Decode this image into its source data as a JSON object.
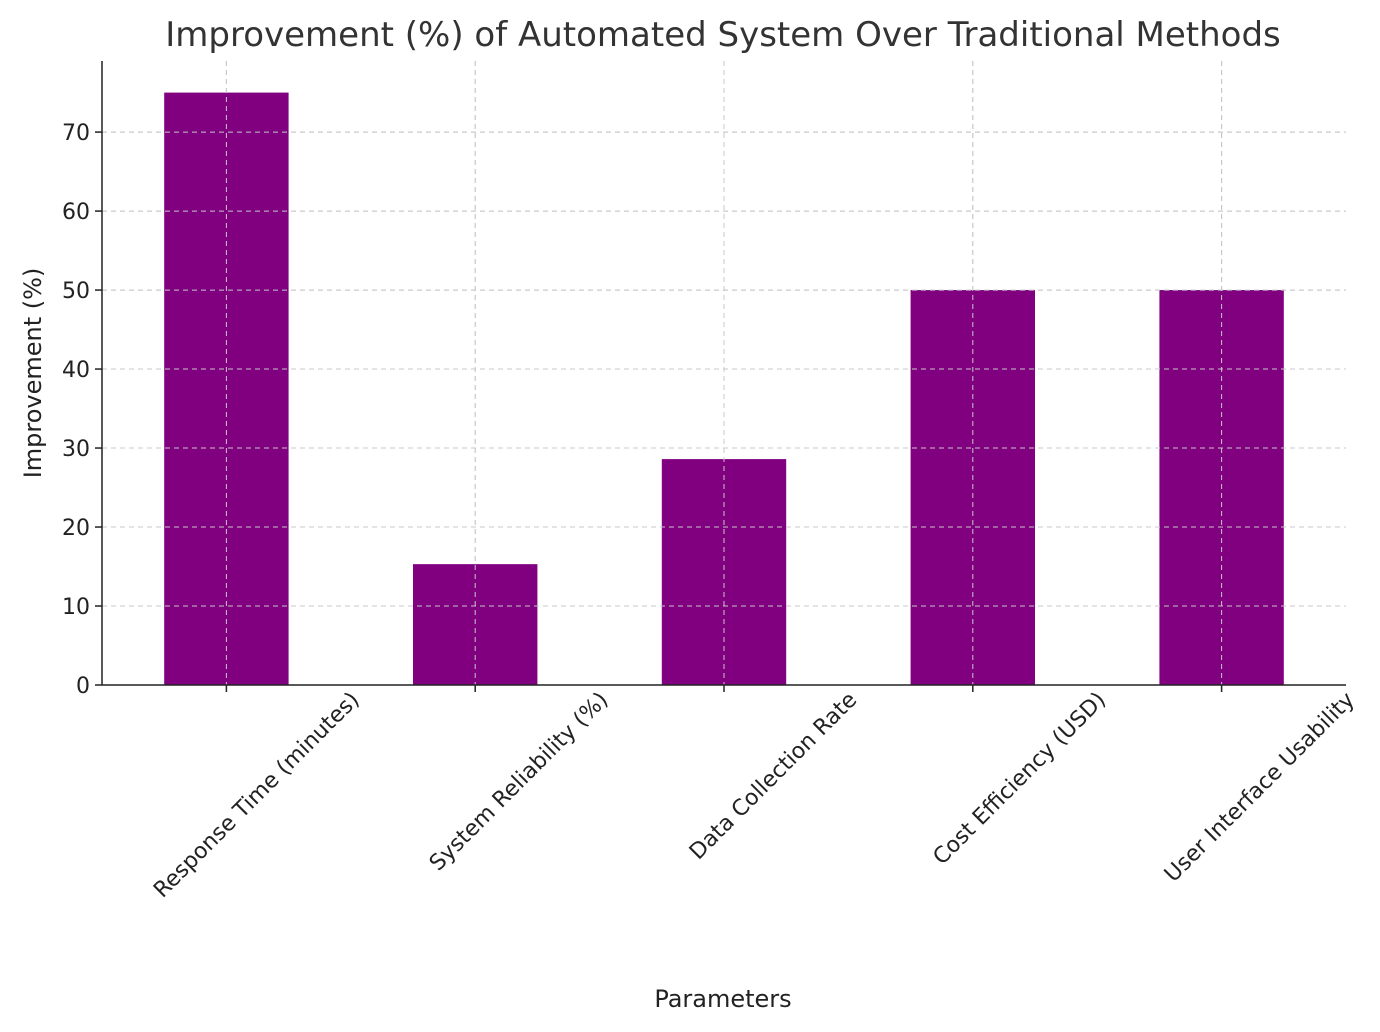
{
  "chart_data": {
    "type": "bar",
    "title": "Improvement (%) of Automated System Over Traditional Methods",
    "xlabel": "Parameters",
    "ylabel": "Improvement (%)",
    "categories": [
      "Response Time (minutes)",
      "System Reliability (%)",
      "Data Collection Rate",
      "Cost Efficiency (USD)",
      "User Interface Usability"
    ],
    "values": [
      75.0,
      15.3,
      28.6,
      50.0,
      50.0
    ],
    "ylim": [
      0,
      79
    ],
    "yticks": [
      0,
      10,
      20,
      30,
      40,
      50,
      60,
      70
    ],
    "grid": true,
    "bar_color": "#800080"
  }
}
